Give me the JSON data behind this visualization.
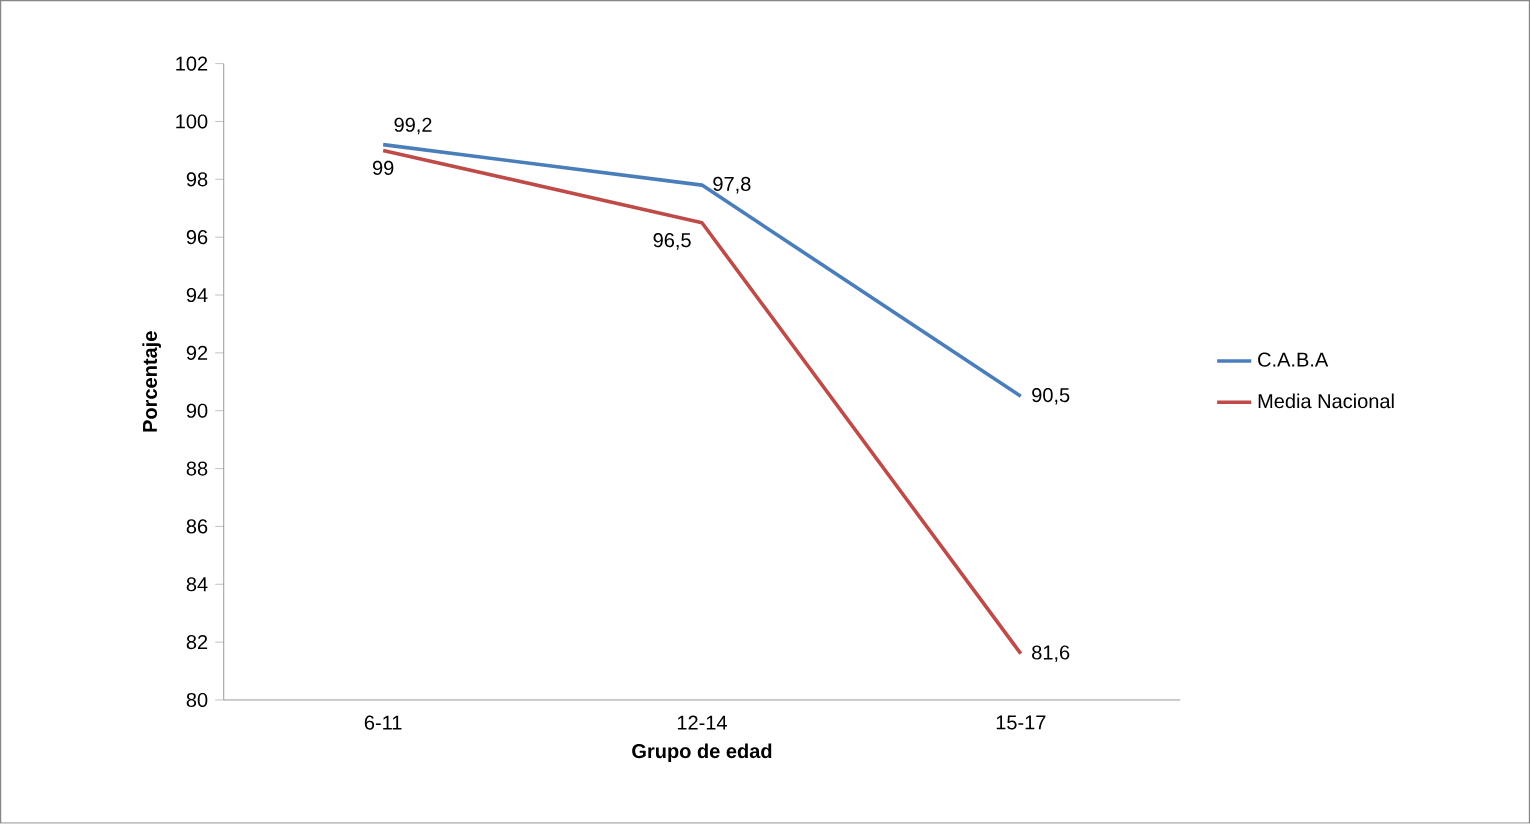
{
  "chart_data": {
    "type": "line",
    "xlabel": "Grupo de edad",
    "ylabel": "Porcentaje",
    "categories": [
      "6-11",
      "12-14",
      "15-17"
    ],
    "series": [
      {
        "name": "C.A.B.A",
        "color": "#4a7ebb",
        "values": [
          99.2,
          97.8,
          90.5
        ],
        "value_labels": [
          "99,2",
          "97,8",
          "90,5"
        ]
      },
      {
        "name": "Media Nacional",
        "color": "#be4b48",
        "values": [
          99,
          96.5,
          81.6
        ],
        "value_labels": [
          "99",
          "96,5",
          "81,6"
        ]
      }
    ],
    "ylim": [
      80,
      102
    ],
    "yticks": [
      80,
      82,
      84,
      86,
      88,
      90,
      92,
      94,
      96,
      98,
      100,
      102
    ],
    "grid": false,
    "legend": "right",
    "marker": "none",
    "line_style": "solid"
  }
}
